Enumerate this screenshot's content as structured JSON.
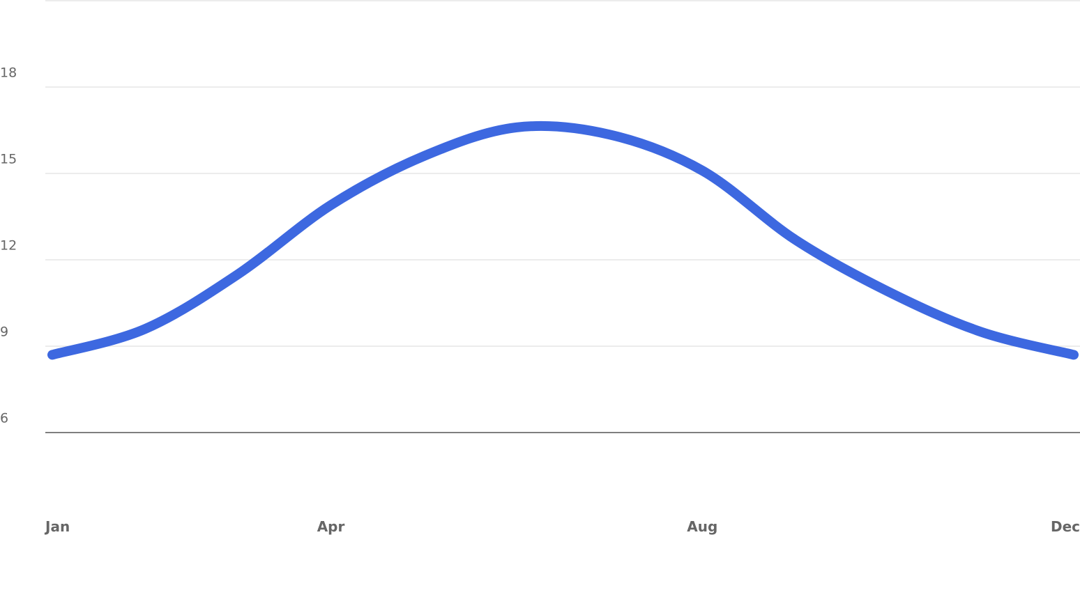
{
  "chart_data": {
    "type": "line",
    "categories": [
      "Jan",
      null,
      null,
      "Apr",
      null,
      null,
      null,
      "Aug",
      null,
      null,
      null,
      "Dec"
    ],
    "series": [
      {
        "color": "#3d68e0",
        "values": [
          8.7,
          9.6,
          11.5,
          13.9,
          15.6,
          16.6,
          16.35,
          15.1,
          12.7,
          10.9,
          9.5,
          8.7
        ]
      }
    ],
    "ylim": [
      6,
      21
    ],
    "yticks": [
      6,
      9,
      12,
      15,
      18
    ],
    "grid": true
  }
}
